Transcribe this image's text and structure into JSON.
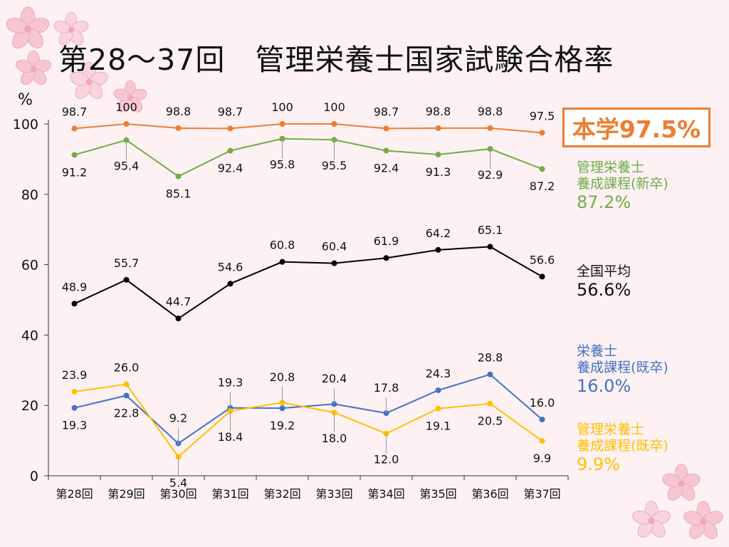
{
  "title": "第28～37回　管理栄養士国家試験合格率",
  "highlight": {
    "label": "本学97.5%"
  },
  "legend": {
    "new_grad": {
      "line1": "管理栄養士",
      "line2": "養成課程(新卒)",
      "pct": "87.2%"
    },
    "national": {
      "line1": "全国平均",
      "pct": "56.6%"
    },
    "eiyoshi_prior": {
      "line1": "栄養士",
      "line2": "養成課程(既卒)",
      "pct": "16.0%"
    },
    "kanri_prior": {
      "line1": "管理栄養士",
      "line2": "養成課程(既卒)",
      "pct": "9.9%"
    }
  },
  "chart_data": {
    "type": "line",
    "ylabel": "%",
    "ylim": [
      0,
      100
    ],
    "yticks": [
      0,
      20,
      40,
      60,
      80,
      100
    ],
    "categories": [
      "第28回",
      "第29回",
      "第30回",
      "第31回",
      "第32回",
      "第33回",
      "第34回",
      "第35回",
      "第36回",
      "第37回"
    ],
    "series": [
      {
        "name": "本学",
        "color": "#ed7d31",
        "values": [
          98.7,
          100,
          98.8,
          98.7,
          100,
          100,
          98.7,
          98.8,
          98.8,
          97.5
        ],
        "labels": [
          "98.7",
          "100",
          "98.8",
          "98.7",
          "100",
          "100",
          "98.7",
          "98.8",
          "98.8",
          "97.5"
        ]
      },
      {
        "name": "管理栄養士養成課程(新卒)",
        "color": "#70ad47",
        "values": [
          91.2,
          95.4,
          85.1,
          92.4,
          95.8,
          95.5,
          92.4,
          91.3,
          92.9,
          87.2
        ],
        "labels": [
          "91.2",
          "95.4",
          "85.1",
          "92.4",
          "95.8",
          "95.5",
          "92.4",
          "91.3",
          "92.9",
          "87.2"
        ]
      },
      {
        "name": "全国平均",
        "color": "#000000",
        "values": [
          48.9,
          55.7,
          44.7,
          54.6,
          60.8,
          60.4,
          61.9,
          64.2,
          65.1,
          56.6
        ],
        "labels": [
          "48.9",
          "55.7",
          "44.7",
          "54.6",
          "60.8",
          "60.4",
          "61.9",
          "64.2",
          "65.1",
          "56.6"
        ]
      },
      {
        "name": "栄養士養成課程(既卒)",
        "color": "#4472c4",
        "values": [
          19.3,
          22.8,
          9.2,
          19.3,
          19.2,
          20.4,
          17.8,
          24.3,
          28.8,
          16.0
        ],
        "labels": [
          "19.3",
          "22.8",
          "9.2",
          "19.3",
          "19.2",
          "20.4",
          "17.8",
          "24.3",
          "28.8",
          "16.0"
        ]
      },
      {
        "name": "管理栄養士養成課程(既卒)",
        "color": "#ffc000",
        "values": [
          23.9,
          26.0,
          5.4,
          18.4,
          20.8,
          18.0,
          12.0,
          19.1,
          20.5,
          9.9
        ],
        "labels": [
          "23.9",
          "26.0",
          "5.4",
          "18.4",
          "20.8",
          "18.0",
          "12.0",
          "19.1",
          "20.5",
          "9.9"
        ]
      }
    ]
  }
}
